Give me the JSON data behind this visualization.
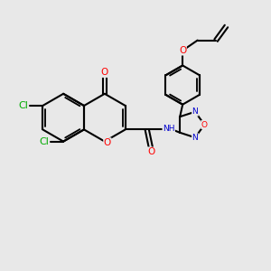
{
  "bg_color": "#e8e8e8",
  "bond_color": "#000000",
  "bond_width": 1.5,
  "atom_colors": {
    "O": "#ff0000",
    "N": "#0000cd",
    "Cl": "#00aa00",
    "C": "#000000",
    "H": "#000000"
  },
  "font_size": 7.5,
  "fig_size": [
    3.0,
    3.0
  ],
  "dpi": 100,
  "chromene": {
    "C4a": [
      3.2,
      6.1
    ],
    "C8a": [
      3.2,
      5.22
    ],
    "bl": 0.88
  }
}
